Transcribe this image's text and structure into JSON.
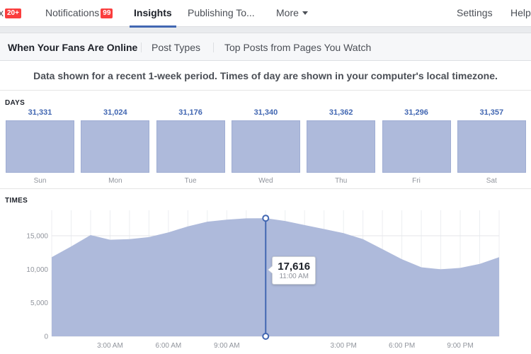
{
  "topnav": {
    "inbox_label": "x",
    "inbox_badge": "20+",
    "notifications_label": "Notifications",
    "notifications_badge": "99",
    "insights_label": "Insights",
    "publishing_label": "Publishing To...",
    "more_label": "More",
    "settings_label": "Settings",
    "help_label": "Help"
  },
  "subtabs": {
    "when_online": "When Your Fans Are Online",
    "post_types": "Post Types",
    "top_posts": "Top Posts from Pages You Watch"
  },
  "notice": "Data shown for a recent 1-week period. Times of day are shown in your computer's local timezone.",
  "days_section": {
    "label": "DAYS"
  },
  "times_section": {
    "label": "TIMES"
  },
  "tooltip": {
    "value": "17,616",
    "time": "11:00 AM"
  },
  "colors": {
    "accent": "#4267b2",
    "bar_fill": "#aebadb",
    "area_fill": "#aebadb",
    "badge": "#fa3e3e"
  },
  "chart_data": [
    {
      "type": "bar",
      "title": "DAYS",
      "categories": [
        "Sun",
        "Mon",
        "Tue",
        "Wed",
        "Thu",
        "Fri",
        "Sat"
      ],
      "value_labels": [
        "31,331",
        "31,024",
        "31,176",
        "31,340",
        "31,362",
        "31,296",
        "31,357"
      ],
      "values": [
        31331,
        31024,
        31176,
        31340,
        31362,
        31296,
        31357
      ]
    },
    {
      "type": "area",
      "title": "TIMES",
      "x_ticks": [
        "3:00 AM",
        "6:00 AM",
        "9:00 AM",
        "3:00 PM",
        "6:00 PM",
        "9:00 PM"
      ],
      "x_tick_hours": [
        3,
        6,
        9,
        15,
        18,
        21
      ],
      "y_ticks": [
        "0",
        "5,000",
        "10,000",
        "15,000"
      ],
      "y_tick_values": [
        0,
        5000,
        10000,
        15000
      ],
      "ylim": [
        0,
        18800
      ],
      "xlim": [
        0,
        23
      ],
      "grid": true,
      "x": [
        0,
        1,
        2,
        3,
        4,
        5,
        6,
        7,
        8,
        9,
        10,
        11,
        12,
        13,
        14,
        15,
        16,
        17,
        18,
        19,
        20,
        21,
        22,
        23
      ],
      "y": [
        11800,
        13400,
        15100,
        14400,
        14500,
        14800,
        15500,
        16400,
        17100,
        17400,
        17600,
        17616,
        17200,
        16600,
        16000,
        15400,
        14500,
        13000,
        11500,
        10300,
        10000,
        10200,
        10800,
        11800
      ],
      "highlight": {
        "x": 11,
        "y": 17616
      }
    }
  ]
}
